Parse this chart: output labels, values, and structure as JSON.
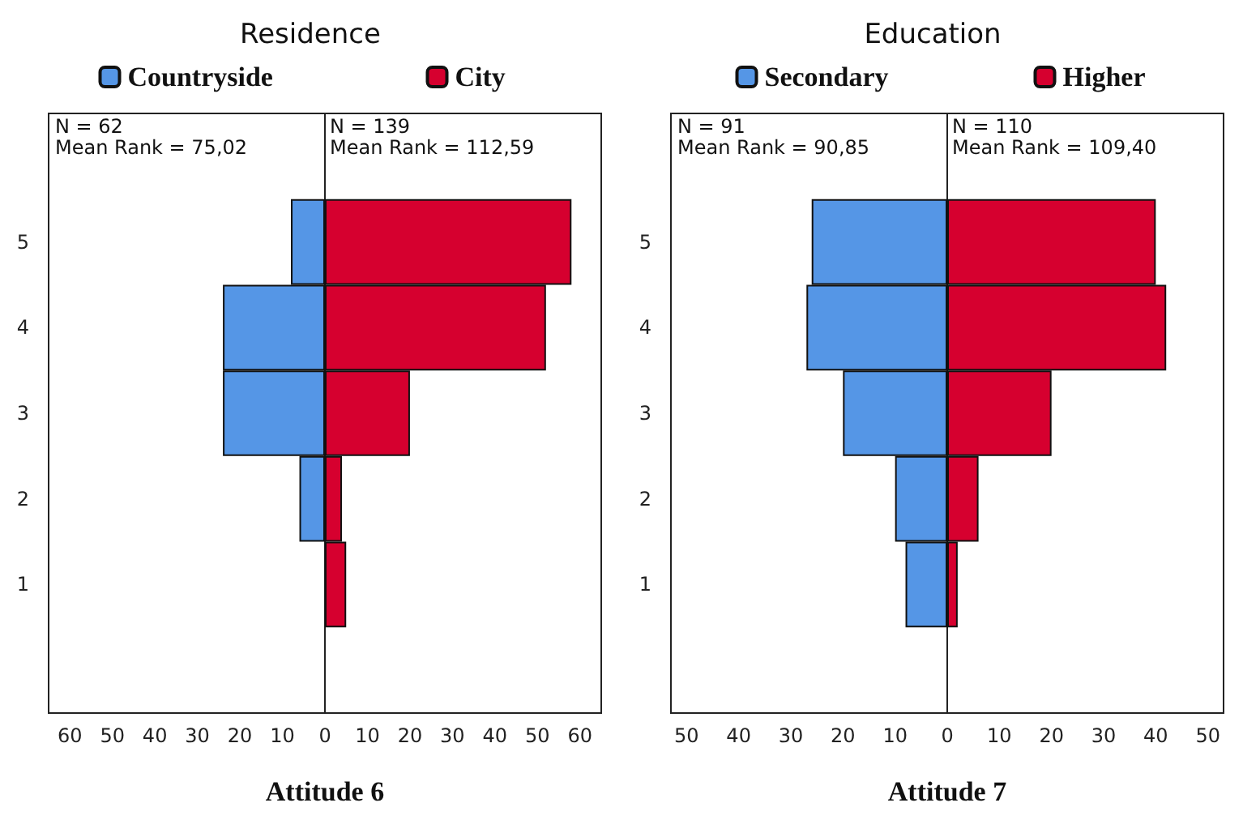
{
  "chart_data": [
    {
      "type": "bar",
      "orientation": "horizontal",
      "stacked": true,
      "title": "Residence",
      "xlabel": "Attitude 6",
      "legend": "top",
      "categories": [
        null,
        "5",
        "4",
        "3",
        "2",
        "1",
        null
      ],
      "series": [
        {
          "name": "Countryside",
          "color": "#5596e6",
          "values": [
            null,
            -8,
            -24,
            -24,
            -6,
            null,
            null
          ]
        },
        {
          "name": "City",
          "color": "#d6002f",
          "values": [
            null,
            58,
            52,
            20,
            4,
            5,
            null
          ]
        }
      ],
      "xlim": [
        -65,
        65
      ],
      "xticks": [
        {
          "value": -60,
          "label": "60"
        },
        {
          "value": -50,
          "label": "50"
        },
        {
          "value": -40,
          "label": "40"
        },
        {
          "value": -30,
          "label": "30"
        },
        {
          "value": -20,
          "label": "20"
        },
        {
          "value": -10,
          "label": "10"
        },
        0,
        10,
        20,
        30,
        40,
        50,
        60
      ],
      "annotations": [
        "N = 62",
        "Mean Rank = 75,02",
        "N = 139",
        "Mean Rank = 112,59"
      ]
    },
    {
      "type": "bar",
      "orientation": "horizontal",
      "stacked": true,
      "title": "Education",
      "xlabel": "Attitude 7",
      "legend": "top",
      "categories": [
        null,
        "5",
        "4",
        "3",
        "2",
        "1",
        null
      ],
      "series": [
        {
          "name": "Secondary",
          "color": "#5596e6",
          "values": [
            null,
            -26,
            -27,
            -20,
            -10,
            -8,
            null
          ]
        },
        {
          "name": "Higher",
          "color": "#d6002f",
          "values": [
            null,
            40,
            42,
            20,
            6,
            2,
            null
          ]
        }
      ],
      "xlim": [
        -53,
        53
      ],
      "xticks": [
        {
          "value": -50,
          "label": "50"
        },
        {
          "value": -40,
          "label": "40"
        },
        {
          "value": -30,
          "label": "30"
        },
        {
          "value": -20,
          "label": "20"
        },
        {
          "value": -10,
          "label": "10"
        },
        0,
        10,
        20,
        30,
        40,
        50
      ],
      "annotations": [
        "N = 91",
        "Mean Rank = 90,85",
        "N = 110",
        "Mean Rank = 109,40"
      ]
    }
  ]
}
